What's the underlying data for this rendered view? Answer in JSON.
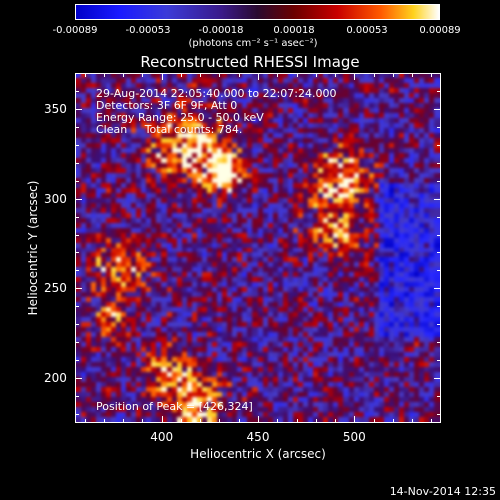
{
  "colorbar": {
    "ticks": [
      "-0.00089",
      "-0.00053",
      "-0.00018",
      "0.00018",
      "0.00053",
      "0.00089"
    ],
    "unit": "(photons cm⁻² s⁻¹ asec⁻²)"
  },
  "image": {
    "title": "Reconstructed RHESSI Image",
    "info": {
      "time_range": "29-Aug-2014 22:05:40.000 to 22:07:24.000",
      "detectors": "Detectors: 3F 6F 9F, Att 0",
      "energy": "Energy Range: 25.0 - 50.0 keV",
      "method": "Clean     Total counts: 784."
    },
    "peak": "Position of Peak = [426,324]",
    "colors": {
      "background": "#000000",
      "low": "#1a1aff",
      "mid": "#3a0f7a",
      "high": "#ff3000",
      "peak": "#ffffd0"
    }
  },
  "chart_data": {
    "type": "heatmap",
    "title": "Reconstructed RHESSI Image",
    "xlabel": "Heliocentric X (arcsec)",
    "ylabel": "Heliocentric Y (arcsec)",
    "xlim": [
      355,
      545
    ],
    "ylim": [
      175,
      370
    ],
    "xticks": [
      "400",
      "450",
      "500"
    ],
    "yticks": [
      "200",
      "250",
      "300",
      "350"
    ],
    "xtick_values": [
      400,
      450,
      500
    ],
    "ytick_values": [
      200,
      250,
      300,
      350
    ],
    "peak_position": [
      426,
      324
    ]
  },
  "footer": {
    "timestamp": "14-Nov-2014 12:35"
  }
}
